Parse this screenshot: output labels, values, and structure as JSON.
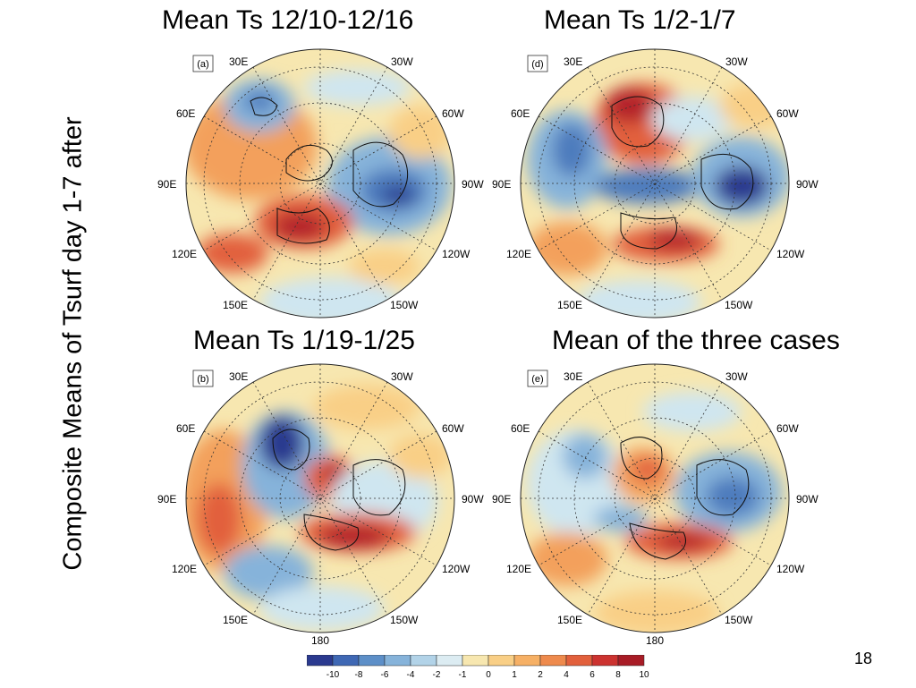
{
  "slide": {
    "side_title": "Composite Means of Tsurf day 1-7 after",
    "slide_number": "18"
  },
  "panels": [
    {
      "id": "a",
      "title": "Mean Ts 12/10-12/16",
      "tag": "(a)",
      "bottom_label": ""
    },
    {
      "id": "d",
      "title": "Mean Ts 1/2-1/7",
      "tag": "(d)",
      "bottom_label": ""
    },
    {
      "id": "b",
      "title": "Mean Ts 1/19-1/25",
      "tag": "(b)",
      "bottom_label": "180"
    },
    {
      "id": "e",
      "title": "Mean of the three cases",
      "tag": "(e)",
      "bottom_label": "180"
    }
  ],
  "longitude_labels": {
    "top_left": "30E",
    "top_right": "30W",
    "upper_left": "60E",
    "upper_right": "60W",
    "mid_left": "90E",
    "mid_right": "90W",
    "lower_left": "120E",
    "lower_right": "120W",
    "bottom_left": "150E",
    "bottom_right": "150W"
  },
  "colorbar": {
    "tick_labels": [
      "-10",
      "-8",
      "-6",
      "-4",
      "-2",
      "-1",
      "0",
      "1",
      "2",
      "4",
      "6",
      "8",
      "10"
    ],
    "colors": [
      "#2b3a8f",
      "#3f68b4",
      "#5d8fc8",
      "#86b3da",
      "#b2d3e8",
      "#dcecf2",
      "#f7e7b0",
      "#f9cf86",
      "#f6b065",
      "#ee8a4d",
      "#e2603c",
      "#cc3330",
      "#a81c26"
    ]
  },
  "map_palette": {
    "deep_blue": "#2b3a8f",
    "blue": "#4d7bbd",
    "mid_blue": "#86b3da",
    "light_blue": "#cfe6f0",
    "pale_yellow": "#f7e7b0",
    "orange_light": "#f9cf86",
    "orange": "#f3a05c",
    "red": "#e2603c",
    "dark_red": "#b4232a"
  }
}
